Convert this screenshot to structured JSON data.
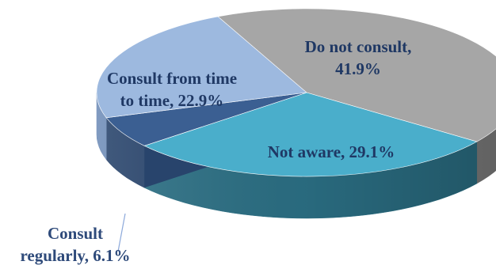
{
  "chart_data": {
    "type": "pie",
    "slices": [
      {
        "label": "Do not consult",
        "value": 41.9,
        "label_lines": [
          "Do not consult,",
          "41.9%"
        ],
        "color": "#a6a6a6",
        "side_color": "#7f7f7f",
        "text_color": "#1f3864"
      },
      {
        "label": "Not aware",
        "value": 29.1,
        "label_lines": [
          "Not aware, 29.1%"
        ],
        "color": "#4aaecb",
        "side_color": "#2b6f84",
        "text_color": "#1f3864"
      },
      {
        "label": "Consult regularly",
        "value": 6.1,
        "label_lines": [
          "Consult",
          "regularly, 6.1%"
        ],
        "color": "#3b5f92",
        "side_color": "#28446c",
        "text_color": "#2e4a7a"
      },
      {
        "label": "Consult from time to time",
        "value": 22.9,
        "label_lines": [
          "Consult from time",
          "to time, 22.9%"
        ],
        "color": "#9db9df",
        "side_color": "#6f8db8",
        "text_color": "#1f3864"
      }
    ]
  }
}
